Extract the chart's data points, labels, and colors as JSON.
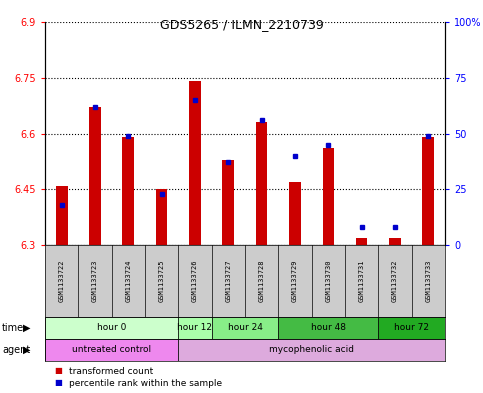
{
  "title": "GDS5265 / ILMN_2210739",
  "samples": [
    "GSM1133722",
    "GSM1133723",
    "GSM1133724",
    "GSM1133725",
    "GSM1133726",
    "GSM1133727",
    "GSM1133728",
    "GSM1133729",
    "GSM1133730",
    "GSM1133731",
    "GSM1133732",
    "GSM1133733"
  ],
  "transformed_count": [
    6.46,
    6.67,
    6.59,
    6.45,
    6.74,
    6.53,
    6.63,
    6.47,
    6.56,
    6.32,
    6.32,
    6.59
  ],
  "percentile_rank": [
    18,
    62,
    49,
    23,
    65,
    37,
    56,
    40,
    45,
    8,
    8,
    49
  ],
  "y_min": 6.3,
  "y_max": 6.9,
  "y_ticks": [
    6.3,
    6.45,
    6.6,
    6.75,
    6.9
  ],
  "y_tick_labels": [
    "6.3",
    "6.45",
    "6.6",
    "6.75",
    "6.9"
  ],
  "y2_ticks": [
    0,
    25,
    50,
    75,
    100
  ],
  "y2_tick_labels": [
    "0",
    "25",
    "50",
    "75",
    "100%"
  ],
  "bar_color": "#cc0000",
  "dot_color": "#0000cc",
  "base_value": 6.3,
  "time_groups": [
    {
      "label": "hour 0",
      "start": 0,
      "end": 4,
      "color": "#ccffcc"
    },
    {
      "label": "hour 12",
      "start": 4,
      "end": 5,
      "color": "#aaffaa"
    },
    {
      "label": "hour 24",
      "start": 5,
      "end": 7,
      "color": "#88ee88"
    },
    {
      "label": "hour 48",
      "start": 7,
      "end": 10,
      "color": "#44bb44"
    },
    {
      "label": "hour 72",
      "start": 10,
      "end": 12,
      "color": "#22aa22"
    }
  ],
  "agent_groups": [
    {
      "label": "untreated control",
      "start": 0,
      "end": 4,
      "color": "#ee88ee"
    },
    {
      "label": "mycophenolic acid",
      "start": 4,
      "end": 12,
      "color": "#ddaadd"
    }
  ],
  "legend_red_label": "transformed count",
  "legend_blue_label": "percentile rank within the sample",
  "bar_color_r": "#cc0000",
  "dot_color_b": "#0000cc",
  "sample_bg": "#cccccc",
  "plot_bg": "#ffffff",
  "fig_bg": "#ffffff"
}
